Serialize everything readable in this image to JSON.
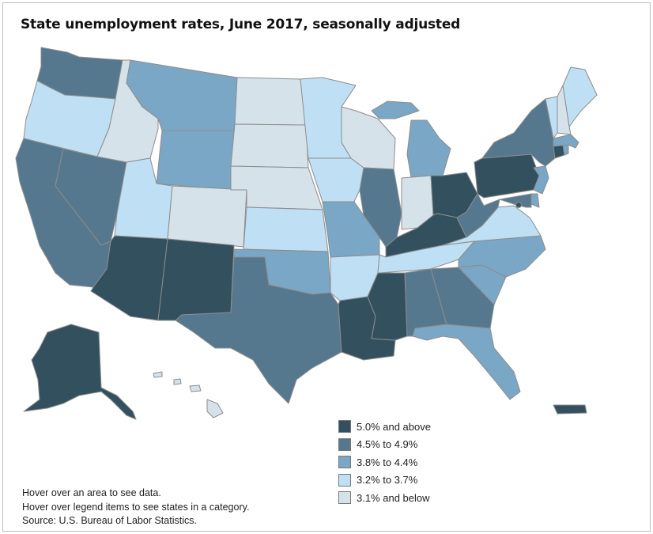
{
  "title": "State unemployment rates, June 2017, seasonally adjusted",
  "colors": {
    "c5": "#33505f",
    "c4": "#56788e",
    "c3": "#7aa7c6",
    "c2": "#bfe0f4",
    "c1": "#d6e2ea"
  },
  "legend": [
    {
      "label": "5.0% and above",
      "color_key": "c5"
    },
    {
      "label": "4.5% to 4.9%",
      "color_key": "c4"
    },
    {
      "label": "3.8% to 4.4%",
      "color_key": "c3"
    },
    {
      "label": "3.2% to 3.7%",
      "color_key": "c2"
    },
    {
      "label": "3.1% and below",
      "color_key": "c1"
    }
  ],
  "state_categories": {
    "washington": "c4",
    "oregon": "c2",
    "california": "c4",
    "nevada": "c4",
    "idaho": "c1",
    "montana": "c3",
    "wyoming": "c3",
    "utah": "c2",
    "arizona": "c5",
    "colorado": "c1",
    "new-mexico": "c5",
    "north-dakota": "c1",
    "south-dakota": "c1",
    "nebraska": "c1",
    "kansas": "c2",
    "oklahoma": "c3",
    "texas": "c4",
    "minnesota": "c2",
    "iowa": "c2",
    "missouri": "c3",
    "arkansas": "c2",
    "louisiana": "c5",
    "wisconsin": "c1",
    "illinois": "c4",
    "michigan": "c3",
    "indiana": "c1",
    "ohio": "c5",
    "kentucky": "c5",
    "tennessee": "c2",
    "mississippi": "c5",
    "alabama": "c4",
    "georgia": "c4",
    "florida": "c3",
    "south-carolina": "c3",
    "north-carolina": "c3",
    "virginia": "c2",
    "west-virginia": "c4",
    "pennsylvania": "c5",
    "new-york": "c4",
    "new-jersey": "c3",
    "delaware": "c3",
    "maryland": "c4",
    "dc": "c5",
    "connecticut": "c5",
    "rhode-island": "c3",
    "massachusetts": "c3",
    "vermont": "c2",
    "new-hampshire": "c1",
    "maine": "c2",
    "alaska": "c5",
    "hawaii": "c1",
    "puerto-rico": "c5"
  },
  "notes": [
    "Hover over an area to see data.",
    "Hover over legend items to see states in a category.",
    "Source: U.S. Bureau of Labor Statistics."
  ]
}
